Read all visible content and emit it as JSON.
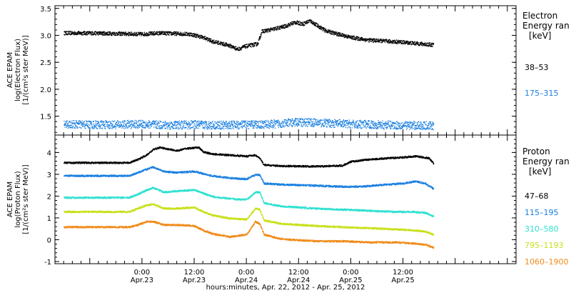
{
  "chart_data": [
    {
      "type": "scatter",
      "ylabel_lines": [
        "ACE EPAM",
        "log(Electron Flux)",
        "[1/(cm²s ster MeV)]"
      ],
      "ylim": [
        1.15,
        3.55
      ],
      "yticks": [
        1.5,
        2.0,
        2.5,
        3.0,
        3.5
      ],
      "ytick_labels": [
        "1.5",
        "2.0",
        "2.5",
        "3.0",
        "3.5"
      ],
      "xlim_hours": [
        -20,
        86
      ],
      "legend_title_lines": [
        "Electron",
        "Energy ran",
        "[keV]"
      ],
      "series": [
        {
          "name": "38–53",
          "color": "#000000",
          "points": [
            [
              -18,
              3.05
            ],
            [
              -12,
              3.05
            ],
            [
              -6,
              3.04
            ],
            [
              0,
              3.03
            ],
            [
              4,
              3.05
            ],
            [
              8,
              3.04
            ],
            [
              11,
              3.03
            ],
            [
              14,
              2.97
            ],
            [
              16,
              2.9
            ],
            [
              18,
              2.86
            ],
            [
              20,
              2.82
            ],
            [
              22,
              2.75
            ],
            [
              23.5,
              2.8
            ],
            [
              26.5,
              2.85
            ],
            [
              27.5,
              3.08
            ],
            [
              30,
              3.12
            ],
            [
              33,
              3.18
            ],
            [
              35,
              3.25
            ],
            [
              37,
              3.22
            ],
            [
              38.5,
              3.28
            ],
            [
              40,
              3.2
            ],
            [
              42,
              3.1
            ],
            [
              44,
              3.05
            ],
            [
              48,
              2.97
            ],
            [
              52,
              2.92
            ],
            [
              56,
              2.9
            ],
            [
              60,
              2.88
            ],
            [
              64,
              2.85
            ],
            [
              67,
              2.83
            ]
          ]
        },
        {
          "name": "175–315",
          "color": "#1a7fe0",
          "points": [
            [
              -18,
              1.36
            ],
            [
              -12,
              1.35
            ],
            [
              -6,
              1.35
            ],
            [
              0,
              1.36
            ],
            [
              6,
              1.34
            ],
            [
              12,
              1.35
            ],
            [
              18,
              1.34
            ],
            [
              24,
              1.35
            ],
            [
              30,
              1.36
            ],
            [
              36,
              1.4
            ],
            [
              42,
              1.38
            ],
            [
              48,
              1.36
            ],
            [
              54,
              1.35
            ],
            [
              60,
              1.34
            ],
            [
              67,
              1.33
            ]
          ]
        }
      ]
    },
    {
      "type": "scatter",
      "ylabel_lines": [
        "ACE EPAM",
        "log(Proton Flux)",
        "[1/(cm²s ster MeV)]"
      ],
      "ylim": [
        -1.1,
        4.8
      ],
      "yticks": [
        -1,
        0,
        1,
        2,
        3,
        4
      ],
      "ytick_labels": [
        "-1",
        "0",
        "1",
        "2",
        "3",
        "4"
      ],
      "xlim_hours": [
        -20,
        86
      ],
      "xticks_hours": [
        0,
        12,
        24,
        36,
        48,
        60
      ],
      "xtick_time_labels": [
        "0:00",
        "12:00",
        "0:00",
        "12:00",
        "0:00",
        "12:00"
      ],
      "xtick_date_labels": [
        "Apr.23",
        "Apr.23",
        "Apr.24",
        "Apr.24",
        "Apr.25",
        "Apr.25"
      ],
      "xlabel": "hours:minutes, Apr. 22, 2012 - Apr. 25, 2012",
      "legend_title_lines": [
        "Proton",
        "Energy ran",
        "[keV]"
      ],
      "series": [
        {
          "name": "47–68",
          "color": "#000000",
          "points": [
            [
              -18,
              3.55
            ],
            [
              -10,
              3.55
            ],
            [
              -3,
              3.55
            ],
            [
              -1,
              3.7
            ],
            [
              1,
              3.9
            ],
            [
              2.5,
              4.15
            ],
            [
              4,
              4.25
            ],
            [
              8,
              4.1
            ],
            [
              10,
              4.2
            ],
            [
              13,
              4.25
            ],
            [
              14,
              4.05
            ],
            [
              16,
              3.95
            ],
            [
              20,
              3.9
            ],
            [
              24,
              3.85
            ],
            [
              26,
              3.9
            ],
            [
              27,
              3.75
            ],
            [
              28,
              3.45
            ],
            [
              32,
              3.4
            ],
            [
              40,
              3.38
            ],
            [
              46,
              3.42
            ],
            [
              48,
              3.6
            ],
            [
              52,
              3.7
            ],
            [
              56,
              3.75
            ],
            [
              60,
              3.8
            ],
            [
              63,
              3.85
            ],
            [
              66,
              3.75
            ],
            [
              67,
              3.5
            ]
          ]
        },
        {
          "name": "115–195",
          "color": "#1a7fe0",
          "points": [
            [
              -18,
              2.95
            ],
            [
              -10,
              2.95
            ],
            [
              -3,
              2.95
            ],
            [
              -1,
              3.1
            ],
            [
              1,
              3.25
            ],
            [
              2.5,
              3.35
            ],
            [
              5,
              3.15
            ],
            [
              8,
              3.1
            ],
            [
              12,
              3.15
            ],
            [
              14,
              3.05
            ],
            [
              16,
              2.95
            ],
            [
              20,
              2.85
            ],
            [
              24,
              2.8
            ],
            [
              26,
              3.0
            ],
            [
              27,
              3.0
            ],
            [
              28,
              2.6
            ],
            [
              32,
              2.55
            ],
            [
              40,
              2.5
            ],
            [
              46,
              2.45
            ],
            [
              50,
              2.45
            ],
            [
              56,
              2.55
            ],
            [
              60,
              2.6
            ],
            [
              63,
              2.7
            ],
            [
              65,
              2.6
            ],
            [
              67,
              2.35
            ]
          ]
        },
        {
          "name": "310–580",
          "color": "#2de0d0",
          "points": [
            [
              -18,
              1.95
            ],
            [
              -10,
              1.95
            ],
            [
              -3,
              1.95
            ],
            [
              -1,
              2.1
            ],
            [
              1,
              2.3
            ],
            [
              2.5,
              2.4
            ],
            [
              5,
              2.2
            ],
            [
              8,
              2.25
            ],
            [
              12,
              2.3
            ],
            [
              14,
              2.15
            ],
            [
              16,
              2.0
            ],
            [
              20,
              1.9
            ],
            [
              24,
              1.85
            ],
            [
              26,
              2.2
            ],
            [
              27,
              2.2
            ],
            [
              28,
              1.7
            ],
            [
              32,
              1.55
            ],
            [
              40,
              1.45
            ],
            [
              46,
              1.4
            ],
            [
              52,
              1.35
            ],
            [
              58,
              1.3
            ],
            [
              62,
              1.3
            ],
            [
              65,
              1.25
            ],
            [
              67,
              1.1
            ]
          ]
        },
        {
          "name": "795–1193",
          "color": "#c8e018",
          "points": [
            [
              -18,
              1.3
            ],
            [
              -10,
              1.3
            ],
            [
              -3,
              1.3
            ],
            [
              -1,
              1.45
            ],
            [
              1,
              1.6
            ],
            [
              2.5,
              1.65
            ],
            [
              5,
              1.45
            ],
            [
              8,
              1.45
            ],
            [
              12,
              1.5
            ],
            [
              14,
              1.3
            ],
            [
              16,
              1.15
            ],
            [
              20,
              1.0
            ],
            [
              24,
              0.95
            ],
            [
              26,
              1.45
            ],
            [
              27,
              1.4
            ],
            [
              28,
              0.9
            ],
            [
              32,
              0.75
            ],
            [
              40,
              0.65
            ],
            [
              46,
              0.6
            ],
            [
              52,
              0.55
            ],
            [
              58,
              0.5
            ],
            [
              62,
              0.45
            ],
            [
              65,
              0.4
            ],
            [
              67,
              0.25
            ]
          ]
        },
        {
          "name": "1060–1900",
          "color": "#f08a18",
          "points": [
            [
              -18,
              0.6
            ],
            [
              -10,
              0.6
            ],
            [
              -3,
              0.6
            ],
            [
              -1,
              0.7
            ],
            [
              1,
              0.85
            ],
            [
              2.5,
              0.85
            ],
            [
              5,
              0.7
            ],
            [
              8,
              0.7
            ],
            [
              12,
              0.65
            ],
            [
              14,
              0.45
            ],
            [
              16,
              0.3
            ],
            [
              20,
              0.15
            ],
            [
              24,
              0.25
            ],
            [
              26,
              0.85
            ],
            [
              27,
              0.75
            ],
            [
              28,
              0.25
            ],
            [
              32,
              0.05
            ],
            [
              40,
              -0.05
            ],
            [
              46,
              -0.05
            ],
            [
              52,
              -0.1
            ],
            [
              58,
              -0.1
            ],
            [
              62,
              -0.15
            ],
            [
              65,
              -0.2
            ],
            [
              67,
              -0.35
            ]
          ]
        }
      ]
    }
  ]
}
